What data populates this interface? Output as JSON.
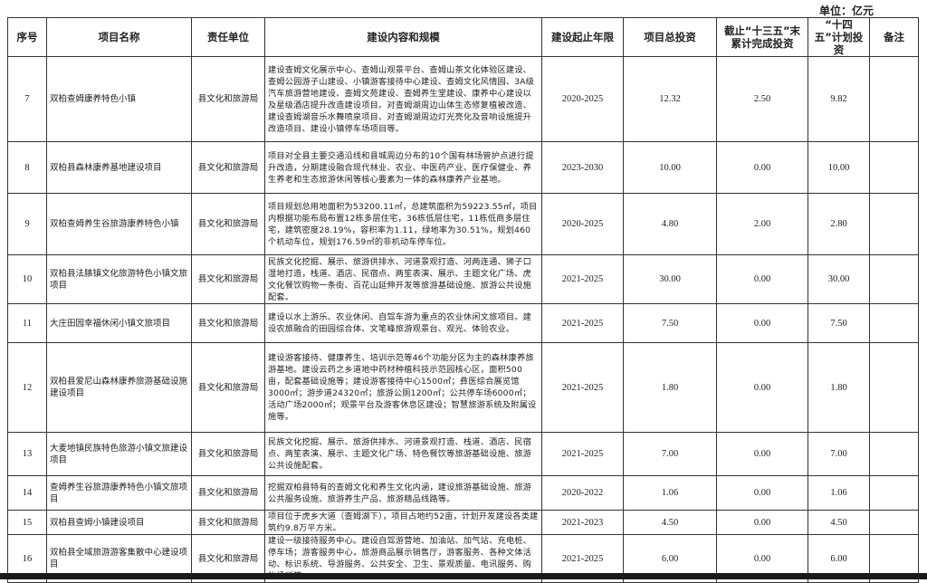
{
  "unit_label": "单位：亿元",
  "headers": [
    "序号",
    "项目名称",
    "责任单位",
    "建设内容和规模",
    "建设起止年限",
    "项目总投资",
    "截止“十三五”末累计完成投资",
    "“十四五”计划投资",
    "备注"
  ],
  "rows": [
    {
      "no": "7",
      "name": "双柏查姆康养特色小镇",
      "unit": "县文化和旅游局",
      "content": "建设查姆文化展示中心、查姆山观景平台、查姆山茶文化体验区建设、查姆公园游子山建设、小镇游客接待中心建设、查姆文化风情园、3A级汽车旅游营地建设、查姆文苑建设、查姆养生堂建设、康养中心建设以及星级酒店提升改造建设项目。对查姆湖周边山体生态修复植被改造、建设查姆湖音乐水舞喷泉项目、对查姆湖周边灯光亮化及音响设施提升改造项目、建设小镇停车场项目等。",
      "period": "2020-2025",
      "total": "12.32",
      "done": "2.50",
      "plan": "9.82",
      "note": ""
    },
    {
      "no": "8",
      "name": "双柏县森林康养基地建设项目",
      "unit": "县文化和旅游局",
      "content": "项目对全县主要交通沿线和县城周边分布的10个国有林场管护点进行提升改造，分期建设融合现代林业、农业、中医药产业、医疗保健业、养生养老和生态旅游休闲等核心要素为一体的森林康养产业基地。",
      "period": "2023-2030",
      "total": "10.00",
      "done": "0.00",
      "plan": "10.00",
      "note": ""
    },
    {
      "no": "9",
      "name": "双柏查姆养生谷旅游康养特色小镇",
      "unit": "县文化和旅游局",
      "content": "项目规划总用地面积为53200.11㎡，总建筑面积为59223.55㎡，项目内根据功能布局布置12栋多层住宅，36栋低层住宅，11栋低商多层住宅，建筑密度28.19%，容积率为1.11，绿地率为30.51%，规划460个机动车位，规划176.59㎡的非机动车停车位。",
      "period": "2020-2025",
      "total": "4.80",
      "done": "2.00",
      "plan": "2.80",
      "note": ""
    },
    {
      "no": "10",
      "name": "双柏县法脿镇文化旅游特色小镇文旅项目",
      "unit": "县文化和旅游局",
      "content": "民族文化挖掘、展示、旅游供排水、河道景观打造、河两连通、狮子口湿地打造，栈道、酒店、民宿点、两笙表演、展示、主题文化广场、虎文化餐饮购物一条街、百花山延伸开发等旅游基础设施、旅游公共设施配套。",
      "period": "2021-2025",
      "total": "30.00",
      "done": "0.00",
      "plan": "30.00",
      "note": ""
    },
    {
      "no": "11",
      "name": "大庄田园幸福休闲小镇文旅项目",
      "unit": "县文化和旅游局",
      "content": "建设以水上游乐、农业休闲、自驾车游为重点的农业休闲文旅项目。建设农旅融合的田园综合体、文笔峰旅游观景台、观光、体验农业。",
      "period": "2021-2025",
      "total": "7.50",
      "done": "0.00",
      "plan": "7.50",
      "note": ""
    },
    {
      "no": "12",
      "name": "双柏县爱尼山森林康养旅游基础设施建设项目",
      "unit": "县文化和旅游局",
      "content": "建设游客接待、健康养生、培训示范等46个功能分区为主的森林康养旅游基地。建设云药之乡道地中药材种植科技示范园核心区，面积500亩，配套基础设施等；建设游客接待中心1500㎡；彝医综合展览馆3000㎡；游步道24320㎡；旅游公厕1200㎡；公共停车场6000㎡；活动广场2000㎡；观景平台及游客休息区建设；智慧旅游系统及附属设施等。",
      "period": "2021-2025",
      "total": "1.80",
      "done": "0.00",
      "plan": "1.80",
      "note": ""
    },
    {
      "no": "13",
      "name": "大麦地镇民族特色旅游小镇文旅建设项目",
      "unit": "县文化和旅游局",
      "content": "民族文化挖掘、展示、旅游供排水、河道景观打造、栈道、酒店、民宿点、两笙表演、展示、主题文化广场、特色餐饮等旅游基础设施、旅游公共设施配套。",
      "period": "2021-2025",
      "total": "7.00",
      "done": "0.00",
      "plan": "7.00",
      "note": ""
    },
    {
      "no": "14",
      "name": "查姆养生谷旅游康养特色小镇文旅项目",
      "unit": "县文化和旅游局",
      "content": "挖掘双柏县特有的查姆文化和养生文化内涵，建设旅游基础设施、旅游公共服务设施、旅游养生产品、旅游精品线路等。",
      "period": "2020-2022",
      "total": "1.06",
      "done": "0.00",
      "plan": "1.06",
      "note": ""
    },
    {
      "no": "15",
      "name": "双柏县查姆小镇建设项目",
      "unit": "县文化和旅游局",
      "content": "项目位于虎乡大道（查姆湖下），项目占地约52亩，计划开发建设各类建筑约9.8万平方米。",
      "period": "2021-2023",
      "total": "4.50",
      "done": "0.00",
      "plan": "4.50",
      "note": ""
    },
    {
      "no": "16",
      "name": "双柏县全域旅游游客集散中心建设项目",
      "unit": "县文化和旅游局",
      "content": "建设一级接待服务中心。建设自驾游营地、加油站、加气站、充电桩、停车场；游客服务中心，旅游商品展示销售厅，游客服务、各种文体活动、标识系统、导游服务、公共安全、卫生、景观质量、电讯服务、购物场所等。",
      "period": "2021-2025",
      "total": "6.00",
      "done": "0.00",
      "plan": "6.00",
      "note": ""
    }
  ]
}
